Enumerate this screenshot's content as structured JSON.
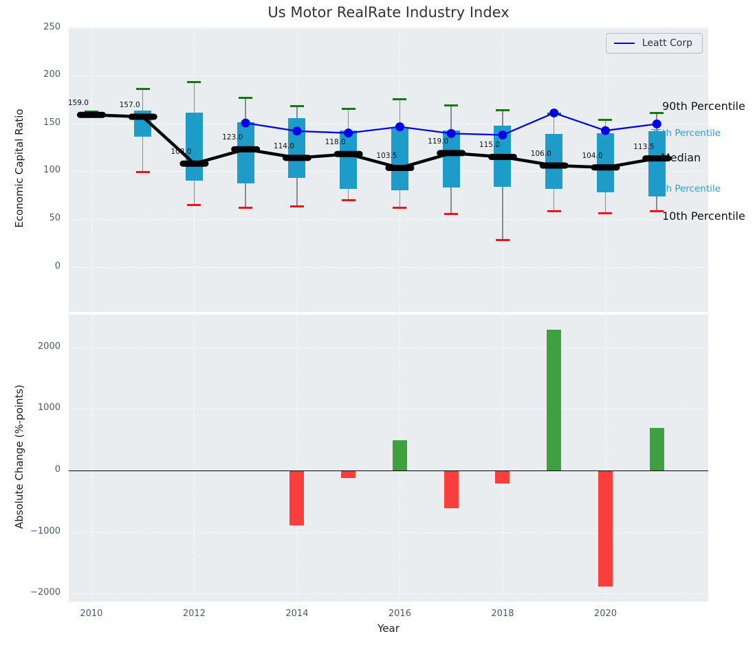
{
  "title": "Us Motor RealRate Industry Index",
  "legend": {
    "label": "Leatt Corp"
  },
  "top_axis": {
    "ylabel": "Economic Capital Ratio",
    "yticks": [
      "250",
      "200",
      "150",
      "100",
      "50",
      "0"
    ],
    "ytick_values": [
      250,
      200,
      150,
      100,
      50,
      0
    ],
    "ylim": [
      -47,
      250.4
    ]
  },
  "bottom_axis": {
    "ylabel": "Absolute Change (%-points)",
    "xlabel": "Year",
    "yticks": [
      "2000",
      "1000",
      "0",
      "−1000",
      "−2000"
    ],
    "ytick_values": [
      2000,
      1000,
      0,
      -1000,
      -2000
    ],
    "ylim": [
      -2130,
      2530
    ],
    "xticks": [
      "2010",
      "2012",
      "2014",
      "2016",
      "2018",
      "2020"
    ],
    "xtick_values": [
      2010,
      2012,
      2014,
      2016,
      2018,
      2020
    ],
    "xlim": [
      2009.56,
      2022.0
    ]
  },
  "annotations": {
    "p90": "90th Percentile",
    "p75": "75th Percentile",
    "median": "Median",
    "p25": "25th Percentile",
    "p10": "10th Percentile"
  },
  "colors": {
    "box_fill": "#1d9bc9",
    "whisker": "#8a8a8a",
    "median": "#000000",
    "median_line": "#000000",
    "cap_90": "#077d07",
    "cap_10": "#fa0f0f",
    "leatt_line": "#0000e8",
    "bar_positive": "#3fa03f",
    "bar_negative": "#f93e3c",
    "teal_label": "#25a4da",
    "plot_background": "#e9edf0"
  },
  "chart_data": [
    {
      "type": "box",
      "title": "Us Motor RealRate Industry Index",
      "xlabel": "",
      "ylabel": "Economic Capital Ratio",
      "x": [
        2010,
        2011,
        2012,
        2013,
        2014,
        2015,
        2016,
        2017,
        2018,
        2019,
        2020,
        2021
      ],
      "series": {
        "median": [
          159.0,
          157.0,
          108.0,
          123.0,
          114.0,
          118.0,
          103.5,
          119.0,
          115.0,
          106.0,
          104.0,
          113.5
        ],
        "p75": [
          160.5,
          163.5,
          161,
          151,
          155.5,
          143,
          145,
          143,
          148,
          139,
          140,
          142
        ],
        "p25": [
          158,
          136,
          90,
          87,
          93,
          81.5,
          80,
          83,
          84,
          81.5,
          78,
          73.5
        ],
        "p90": [
          162.5,
          186,
          193,
          177,
          168.5,
          165,
          175.5,
          169,
          163.5,
          160.5,
          154,
          161
        ],
        "p10": [
          158,
          99,
          64.5,
          62,
          63,
          70,
          61.5,
          55.5,
          28,
          58,
          56,
          58
        ]
      },
      "median_labels": [
        "159.0",
        "157.0",
        "108.0",
        "123.0",
        "114.0",
        "118.0",
        "103.5",
        "119.0",
        "115.0",
        "106.0",
        "104.0",
        "113.5"
      ],
      "overlay_line": {
        "name": "Leatt Corp",
        "x": [
          2013,
          2014,
          2015,
          2016,
          2017,
          2018,
          2019,
          2020,
          2021
        ],
        "y": [
          150.5,
          142,
          140,
          146.5,
          139.5,
          138,
          161,
          142.5,
          149.5
        ]
      },
      "ylim": [
        -47,
        250.4
      ],
      "grid": true,
      "legend_position": "upper right"
    },
    {
      "type": "bar",
      "xlabel": "Year",
      "ylabel": "Absolute Change (%-points)",
      "x": [
        2010,
        2011,
        2012,
        2013,
        2014,
        2015,
        2016,
        2017,
        2018,
        2019,
        2020,
        2021
      ],
      "values": [
        0,
        0,
        0,
        0,
        -890,
        -120,
        490,
        -610,
        -210,
        2290,
        -1890,
        690
      ],
      "ylim": [
        -2130,
        2530
      ],
      "grid": true
    }
  ]
}
